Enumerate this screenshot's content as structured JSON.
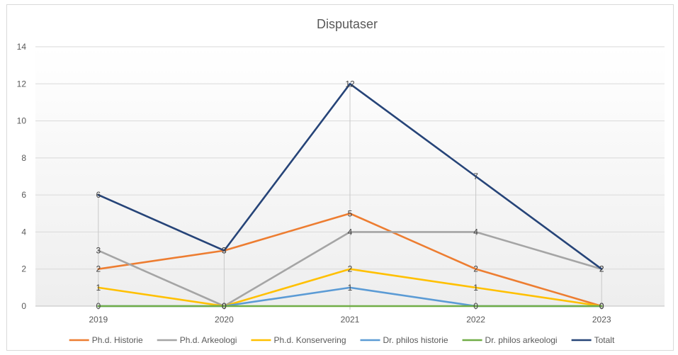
{
  "chart_data": {
    "type": "line",
    "title": "Disputaser",
    "xlabel": "",
    "ylabel": "",
    "categories": [
      "2019",
      "2020",
      "2021",
      "2022",
      "2023"
    ],
    "ylim": [
      0,
      14
    ],
    "yticks": [
      0,
      2,
      4,
      6,
      8,
      10,
      12,
      14
    ],
    "grid": true,
    "legend": "bottom",
    "series": [
      {
        "name": "Ph.d. Historie",
        "color": "#ED7D31",
        "values": [
          2,
          3,
          5,
          2,
          0
        ]
      },
      {
        "name": "Ph.d. Arkeologi",
        "color": "#A5A5A5",
        "values": [
          3,
          0,
          4,
          4,
          2
        ]
      },
      {
        "name": "Ph.d. Konservering",
        "color": "#FFC000",
        "values": [
          1,
          0,
          2,
          1,
          0
        ]
      },
      {
        "name": "Dr. philos historie",
        "color": "#5B9BD5",
        "values": [
          0,
          0,
          1,
          0,
          0
        ]
      },
      {
        "name": "Dr. philos arkeologi",
        "color": "#70AD47",
        "values": [
          0,
          0,
          0,
          0,
          0
        ]
      },
      {
        "name": "Totalt",
        "color": "#264478",
        "values": [
          6,
          3,
          12,
          7,
          2
        ]
      }
    ],
    "labeled_series": [
      "Ph.d. Historie",
      "Ph.d. Arkeologi",
      "Ph.d. Konservering",
      "Dr. philos historie",
      "Totalt"
    ]
  }
}
